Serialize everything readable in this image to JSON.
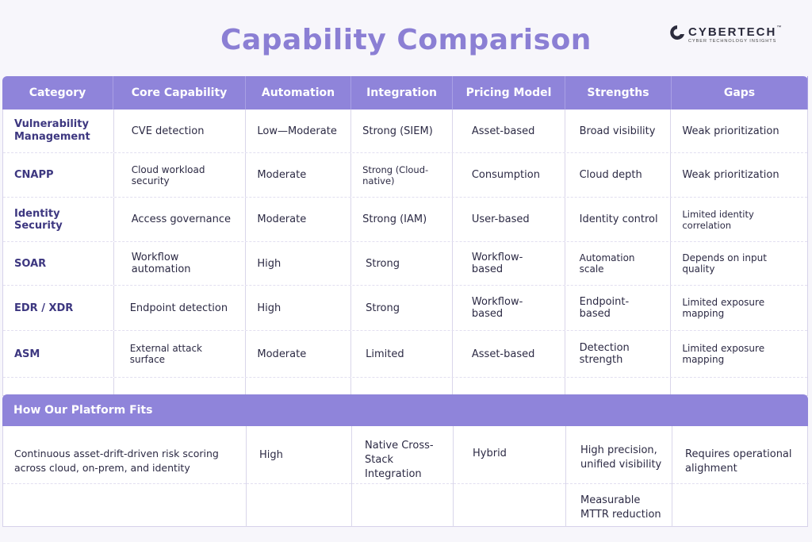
{
  "title": "Capability Comparison",
  "logo": {
    "brand_bold": "CYBER",
    "brand_rest": "TECH",
    "tm": "™",
    "tagline": "CYBER TECHNOLOGY INSIGHTS"
  },
  "table": {
    "headers": [
      "Category",
      "Core Capability",
      "Automation",
      "Integration",
      "Pricing Model",
      "Strengths",
      "Gaps"
    ],
    "rows": [
      [
        "Vulnerability Management",
        "CVE detection",
        "Low—Moderate",
        "Strong (SIEM)",
        "Asset-based",
        "Broad visibility",
        "Weak prioritization"
      ],
      [
        "CNAPP",
        "Cloud workload security",
        "Moderate",
        "Strong (Cloud-native)",
        "Consumption",
        "Cloud depth",
        "Weak prioritization"
      ],
      [
        "Identity Security",
        "Access governance",
        "Moderate",
        "Strong (IAM)",
        "User-based",
        "Identity control",
        "Limited identity correlation"
      ],
      [
        "SOAR",
        "Workflow automation",
        "High",
        "Strong",
        "Workflow-based",
        "Automation scale",
        "Depends on input quality"
      ],
      [
        "EDR / XDR",
        "Endpoint detection",
        "High",
        "Strong",
        "Workflow-based",
        "Endpoint-based",
        "Limited exposure mapping"
      ],
      [
        "ASM",
        "External attack surface",
        "Moderate",
        "Limited",
        "Asset-based",
        "Detection strength",
        "Limited exposure mapping"
      ]
    ]
  },
  "fits": {
    "heading": "How Our Platform Fits",
    "capability": "Continuous asset-drift-driven risk scoring across cloud, on-prem, and identity",
    "automation": "High",
    "integration": "Native Cross-Stack Integration",
    "pricing": "Hybrid",
    "strengths_1": "High precision, unified visibility",
    "strengths_2": "Measurable MTTR reduction",
    "gaps": "Requires operational alighment"
  }
}
